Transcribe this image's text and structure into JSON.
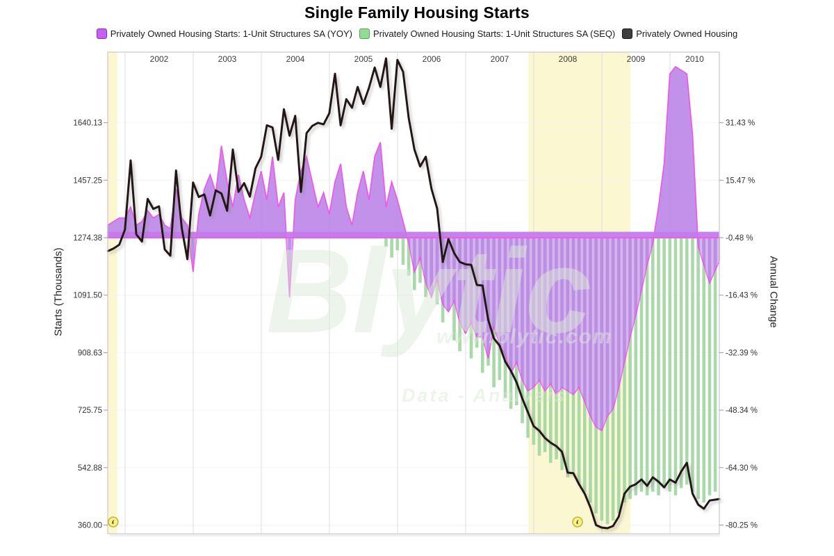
{
  "chart_data": {
    "type": "combo",
    "title": "Single Family Housing Starts",
    "x_start": "2001-10",
    "x_freq": "monthly",
    "x_axis": {
      "year_labels": [
        "2002",
        "2003",
        "2004",
        "2005",
        "2006",
        "2007",
        "2008",
        "2009",
        "2010"
      ]
    },
    "left_axis": {
      "label": "Starts (Thousands)",
      "ticks": [
        1640.13,
        1457.25,
        1274.38,
        1091.5,
        908.63,
        725.75,
        542.88,
        360.0
      ]
    },
    "right_axis": {
      "label": "Annual Change",
      "ticks": [
        31.43,
        15.47,
        -0.48,
        -16.43,
        -32.39,
        -48.34,
        -64.3,
        -80.25
      ]
    },
    "series": [
      {
        "name": "Privately Owned Housing Starts: 1-Unit Structures SA (YOY)",
        "type": "area",
        "axis": "right",
        "unit": "%",
        "color": "#c75ff0",
        "border": "#8d2bd0",
        "values": [
          3,
          4,
          5,
          5,
          8,
          3,
          4,
          7,
          5,
          6,
          3,
          2,
          13,
          5,
          3,
          -10,
          6,
          13,
          17,
          12,
          25,
          15,
          8,
          17,
          10,
          5,
          12,
          18,
          10,
          22,
          8,
          12,
          -17,
          10,
          18,
          22,
          15,
          8,
          12,
          6,
          15,
          20,
          8,
          3,
          12,
          18,
          10,
          22,
          26,
          8,
          15,
          10,
          4,
          -2,
          -10,
          -6,
          -13,
          -17,
          -12,
          -19,
          -21,
          -18,
          -24,
          -27,
          -24,
          -28,
          -28,
          -34,
          -25,
          -30,
          -33,
          -38,
          -35,
          -40,
          -43,
          -42,
          -40,
          -43,
          -41,
          -44,
          -42,
          -43,
          -44,
          -42,
          -46,
          -50,
          -53,
          -54,
          -50,
          -48,
          -42,
          -35,
          -28,
          -22,
          -15,
          -8,
          -2,
          8,
          20,
          45,
          47,
          46,
          45,
          28,
          -3,
          -8,
          -13,
          -7
        ]
      },
      {
        "name": "Privately Owned Housing Starts: 1-Unit Structures SA (SEQ)",
        "type": "bar",
        "axis": "right",
        "unit": "%",
        "color": "#93dc93",
        "border": "#53a653",
        "values": [
          null,
          null,
          null,
          null,
          null,
          null,
          null,
          null,
          null,
          null,
          null,
          null,
          null,
          null,
          null,
          null,
          null,
          null,
          null,
          null,
          null,
          null,
          null,
          null,
          null,
          null,
          null,
          null,
          null,
          null,
          null,
          null,
          null,
          null,
          null,
          null,
          null,
          null,
          null,
          null,
          null,
          null,
          null,
          null,
          null,
          null,
          null,
          null,
          null,
          -3,
          -6,
          -4,
          -8,
          -11,
          -15,
          -13,
          -17,
          -15,
          -19,
          -24,
          -20,
          -29,
          -32,
          -27,
          -34,
          -31,
          -38,
          -36,
          -42,
          -40,
          -45,
          -48,
          -47,
          -52,
          -56,
          -58,
          -61,
          -60,
          -63,
          -62,
          -65,
          -67,
          -66,
          -69,
          -71,
          -74,
          -77,
          -79,
          -80,
          -79,
          -77,
          -74,
          -73,
          -72,
          -71,
          -72,
          -71,
          -72,
          -70,
          -71,
          -72,
          -70,
          -69,
          -71,
          -73,
          -74,
          -72,
          -71
        ]
      },
      {
        "name": "Privately Owned Housing",
        "type": "line",
        "axis": "left",
        "unit": "thousands",
        "color": "#3f3f3f",
        "border": "#161616",
        "values": [
          1232,
          1240,
          1252,
          1300,
          1520,
          1285,
          1262,
          1398,
          1366,
          1374,
          1237,
          1217,
          1488,
          1305,
          1206,
          1450,
          1404,
          1412,
          1345,
          1425,
          1415,
          1360,
          1555,
          1420,
          1448,
          1405,
          1495,
          1532,
          1632,
          1625,
          1522,
          1683,
          1599,
          1662,
          1420,
          1607,
          1630,
          1640,
          1635,
          1670,
          1796,
          1632,
          1715,
          1688,
          1754,
          1700,
          1752,
          1816,
          1754,
          1845,
          1621,
          1840,
          1802,
          1655,
          1555,
          1501,
          1532,
          1430,
          1367,
          1197,
          1270,
          1225,
          1197,
          1190,
          1188,
          1124,
          1122,
          1013,
          954,
          931,
          880,
          851,
          814,
          763,
          719,
          675,
          660,
          637,
          622,
          611,
          593,
          527,
          525,
          490,
          460,
          416,
          360,
          352,
          350,
          357,
          387,
          460,
          482,
          490,
          505,
          485,
          512,
          498,
          480,
          505,
          495,
          530,
          558,
          460,
          425,
          412,
          438,
          443
        ]
      }
    ],
    "recession_bands": [
      {
        "from_year": 2001.745,
        "to_year": 2001.885
      },
      {
        "from_year": 2007.92,
        "to_year": 2009.42
      }
    ],
    "markers": [
      {
        "x_year": 2001.826
      },
      {
        "x_year": 2008.643
      }
    ],
    "watermark": {
      "line1": "Blytic",
      "line2": "www.blytic.com",
      "line3": "Data - Analysis"
    },
    "colors": {
      "yoy_fill": "#bb86e8",
      "yoy_stroke": "#ea5ce8",
      "baseline_band": "#c47aeb",
      "seq_fill": "#a9d9a9",
      "line": "#241914",
      "recession_band": "#fbf7d0",
      "grid_v": "#dddddd",
      "grid_h": "#f4f4f4",
      "frame": "#c9c9c9",
      "marker_fill": "#f6f18a",
      "marker_stroke": "#bdb531",
      "watermark": "#dcead8",
      "tick_text": "#333333"
    }
  }
}
